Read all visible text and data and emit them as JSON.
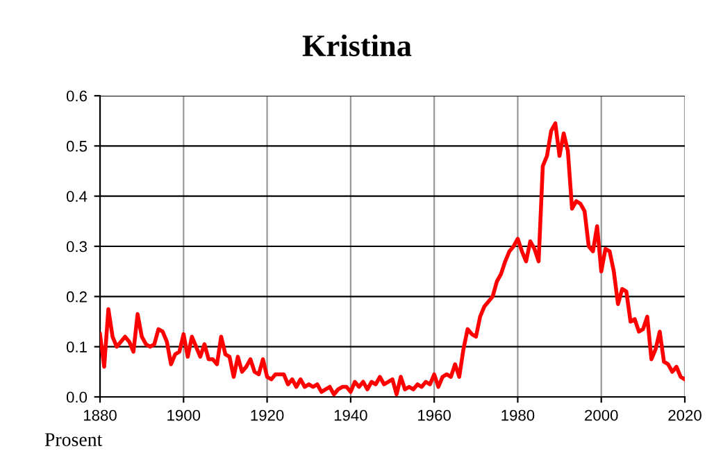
{
  "chart_data": {
    "type": "line",
    "title": "Kristina",
    "ylabel": "Prosent",
    "x": [
      1880,
      1881,
      1882,
      1883,
      1884,
      1885,
      1886,
      1887,
      1888,
      1889,
      1890,
      1891,
      1892,
      1893,
      1894,
      1895,
      1896,
      1897,
      1898,
      1899,
      1900,
      1901,
      1902,
      1903,
      1904,
      1905,
      1906,
      1907,
      1908,
      1909,
      1910,
      1911,
      1912,
      1913,
      1914,
      1915,
      1916,
      1917,
      1918,
      1919,
      1920,
      1921,
      1922,
      1923,
      1924,
      1925,
      1926,
      1927,
      1928,
      1929,
      1930,
      1931,
      1932,
      1933,
      1934,
      1935,
      1936,
      1937,
      1938,
      1939,
      1940,
      1941,
      1942,
      1943,
      1944,
      1945,
      1946,
      1947,
      1948,
      1949,
      1950,
      1951,
      1952,
      1953,
      1954,
      1955,
      1956,
      1957,
      1958,
      1959,
      1960,
      1961,
      1962,
      1963,
      1964,
      1965,
      1966,
      1967,
      1968,
      1969,
      1970,
      1971,
      1972,
      1973,
      1974,
      1975,
      1976,
      1977,
      1978,
      1979,
      1980,
      1981,
      1982,
      1983,
      1984,
      1985,
      1986,
      1987,
      1988,
      1989,
      1990,
      1991,
      1992,
      1993,
      1994,
      1995,
      1996,
      1997,
      1998,
      1999,
      2000,
      2001,
      2002,
      2003,
      2004,
      2005,
      2006,
      2007,
      2008,
      2009,
      2010,
      2011,
      2012,
      2013,
      2014,
      2015,
      2016,
      2017,
      2018,
      2019,
      2020
    ],
    "series": [
      {
        "color": "#ff0000",
        "values": [
          0.125,
          0.06,
          0.175,
          0.12,
          0.1,
          0.11,
          0.12,
          0.11,
          0.09,
          0.165,
          0.12,
          0.105,
          0.1,
          0.105,
          0.135,
          0.13,
          0.11,
          0.065,
          0.085,
          0.09,
          0.125,
          0.08,
          0.12,
          0.1,
          0.08,
          0.105,
          0.075,
          0.075,
          0.065,
          0.12,
          0.085,
          0.08,
          0.04,
          0.08,
          0.05,
          0.06,
          0.075,
          0.05,
          0.045,
          0.075,
          0.04,
          0.035,
          0.045,
          0.045,
          0.045,
          0.025,
          0.035,
          0.02,
          0.035,
          0.02,
          0.025,
          0.02,
          0.025,
          0.01,
          0.015,
          0.02,
          0.005,
          0.015,
          0.02,
          0.02,
          0.01,
          0.03,
          0.02,
          0.03,
          0.015,
          0.03,
          0.025,
          0.04,
          0.025,
          0.03,
          0.035,
          0.005,
          0.04,
          0.015,
          0.02,
          0.015,
          0.025,
          0.02,
          0.03,
          0.025,
          0.045,
          0.02,
          0.04,
          0.045,
          0.04,
          0.065,
          0.04,
          0.095,
          0.135,
          0.125,
          0.12,
          0.16,
          0.18,
          0.19,
          0.2,
          0.23,
          0.245,
          0.27,
          0.29,
          0.3,
          0.315,
          0.29,
          0.27,
          0.31,
          0.295,
          0.27,
          0.46,
          0.48,
          0.53,
          0.545,
          0.48,
          0.525,
          0.49,
          0.375,
          0.39,
          0.385,
          0.37,
          0.3,
          0.29,
          0.34,
          0.25,
          0.295,
          0.29,
          0.25,
          0.185,
          0.215,
          0.21,
          0.15,
          0.155,
          0.13,
          0.135,
          0.16,
          0.075,
          0.095,
          0.13,
          0.07,
          0.065,
          0.05,
          0.06,
          0.04,
          0.035
        ]
      }
    ],
    "xlim": [
      1880,
      2020
    ],
    "xticks": [
      1880,
      1900,
      1920,
      1940,
      1960,
      1980,
      2000,
      2020
    ],
    "ylim": [
      0,
      0.6
    ],
    "yticks": [
      {
        "value": 0,
        "label": "0.0"
      },
      0.1,
      0.2,
      0.3,
      0.4,
      0.5,
      0.6
    ],
    "grid": true,
    "line_style": "solid",
    "marker": "none"
  }
}
